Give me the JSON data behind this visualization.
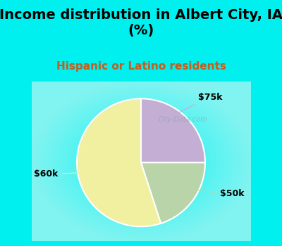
{
  "title": "Income distribution in Albert City, IA\n(%)",
  "subtitle": "Hispanic or Latino residents",
  "slices": [
    {
      "label": "$75k",
      "value": 25,
      "color": "#c4aed4"
    },
    {
      "label": "$50k",
      "value": 20,
      "color": "#b8d4a8"
    },
    {
      "label": "$60k",
      "value": 55,
      "color": "#f0f0a0"
    }
  ],
  "title_fontsize": 14,
  "subtitle_fontsize": 11,
  "subtitle_color": "#c06020",
  "label_fontsize": 9,
  "top_bg_color": "#00efef",
  "chart_bg_color": "#ffffff",
  "watermark": "City-Data.com",
  "startangle": 90
}
